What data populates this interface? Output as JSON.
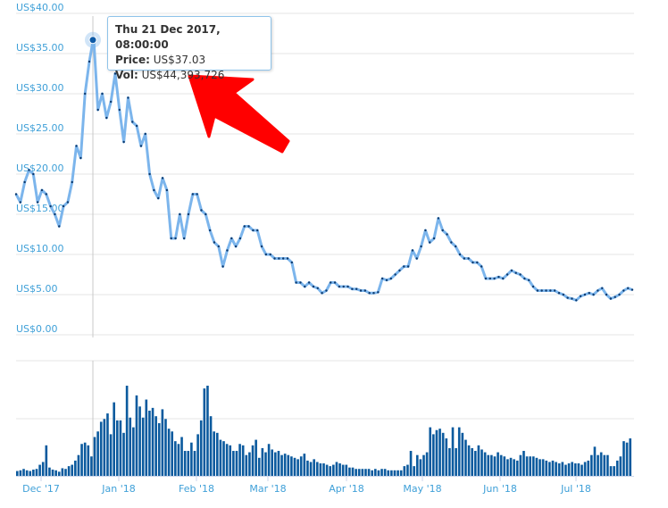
{
  "chart_data": {
    "type": "line",
    "title": "",
    "start_date": "2017-11-21",
    "end_date": "2018-07-24",
    "y_axis": {
      "ticks": [
        "US$0.00",
        "US$5.00",
        "US$10.00",
        "US$15.00",
        "US$20.00",
        "US$25.00",
        "US$30.00",
        "US$35.00",
        "US$40.00"
      ],
      "ylim": [
        0,
        40
      ]
    },
    "x_ticks": [
      "Dec '17",
      "Jan '18",
      "Feb '18",
      "Mar '18",
      "Apr '18",
      "May '18",
      "Jun '18",
      "Jul '18"
    ],
    "price_series": {
      "name": "Price (US$)",
      "color": "#7cb5ec",
      "marker_color": "#0d3a6e",
      "values": [
        17.5,
        16.5,
        19,
        20.5,
        20,
        16.5,
        18,
        17.5,
        16,
        15,
        13.5,
        16,
        16.5,
        19,
        23.5,
        22,
        30,
        34,
        37.03,
        28,
        30,
        27,
        29,
        32.5,
        28,
        24,
        29.5,
        26.5,
        26,
        23.5,
        25,
        20,
        18,
        17,
        19.5,
        18,
        12,
        12,
        15,
        12,
        15,
        17.5,
        17.5,
        15.5,
        15,
        13,
        11.5,
        11,
        8.5,
        10.5,
        12,
        11,
        12,
        13.5,
        13.5,
        13,
        13,
        11,
        10,
        10,
        9.5,
        9.5,
        9.5,
        9.5,
        9,
        6.5,
        6.5,
        6,
        6.5,
        6,
        5.8,
        5.2,
        5.5,
        6.5,
        6.5,
        6,
        6,
        6,
        5.7,
        5.7,
        5.5,
        5.5,
        5.2,
        5.2,
        5.3,
        7,
        6.8,
        7,
        7.5,
        8,
        8.5,
        8.5,
        10.5,
        9.5,
        11,
        13,
        11.5,
        12,
        14.5,
        13,
        12.5,
        11.5,
        11,
        10,
        9.5,
        9.5,
        9,
        9,
        8.5,
        7,
        7,
        7,
        7.2,
        7,
        7.5,
        8,
        7.7,
        7.5,
        7,
        6.8,
        6,
        5.5,
        5.5,
        5.5,
        5.5,
        5.5,
        5.2,
        5,
        4.6,
        4.5,
        4.3,
        4.8,
        5,
        5.2,
        5,
        5.5,
        5.8,
        5,
        4.5,
        4.7,
        5,
        5.5,
        5.8,
        5.6
      ]
    },
    "volume_series": {
      "name": "Volume (US$ millions)",
      "color": "#0b5a9e",
      "values": [
        7,
        8,
        10,
        8,
        7,
        9,
        10,
        16,
        20,
        44,
        12,
        9,
        8,
        6,
        11,
        10,
        14,
        16,
        22,
        30,
        46,
        48,
        44,
        28,
        56,
        64,
        78,
        82,
        90,
        60,
        106,
        80,
        80,
        62,
        130,
        84,
        70,
        116,
        100,
        84,
        110,
        94,
        98,
        86,
        76,
        96,
        82,
        68,
        64,
        50,
        46,
        56,
        36,
        36,
        48,
        36,
        60,
        80,
        126,
        130,
        86,
        64,
        62,
        52,
        50,
        46,
        44,
        36,
        36,
        46,
        44,
        30,
        34,
        44,
        52,
        26,
        40,
        34,
        46,
        38,
        34,
        36,
        30,
        32,
        30,
        28,
        26,
        24,
        28,
        32,
        22,
        20,
        24,
        20,
        18,
        18,
        16,
        14,
        16,
        20,
        18,
        16,
        16,
        12,
        12,
        10,
        10,
        10,
        10,
        10,
        8,
        10,
        8,
        10,
        10,
        8,
        8,
        8,
        8,
        8,
        14,
        16,
        36,
        14,
        30,
        24,
        30,
        34,
        70,
        60,
        66,
        68,
        62,
        54,
        40,
        70,
        40,
        70,
        62,
        52,
        44,
        40,
        36,
        44,
        38,
        34,
        30,
        30,
        28,
        34,
        30,
        28,
        24,
        26,
        24,
        22,
        30,
        36,
        28,
        28,
        28,
        26,
        24,
        24,
        22,
        20,
        22,
        20,
        18,
        20,
        16,
        18,
        20,
        18,
        18,
        16,
        20,
        22,
        30,
        42,
        30,
        34,
        30,
        30,
        14,
        14,
        22,
        28,
        50,
        48,
        54
      ]
    },
    "highlighted_point": {
      "index": 18
    }
  },
  "tooltip": {
    "date": "Thu 21 Dec 2017, 08:00:00",
    "price_label": "Price:",
    "price_value": "US$37.03",
    "vol_label": "Vol:",
    "vol_value": "US$44,393,726"
  },
  "annotation": {
    "arrow_color": "#ff0000"
  }
}
